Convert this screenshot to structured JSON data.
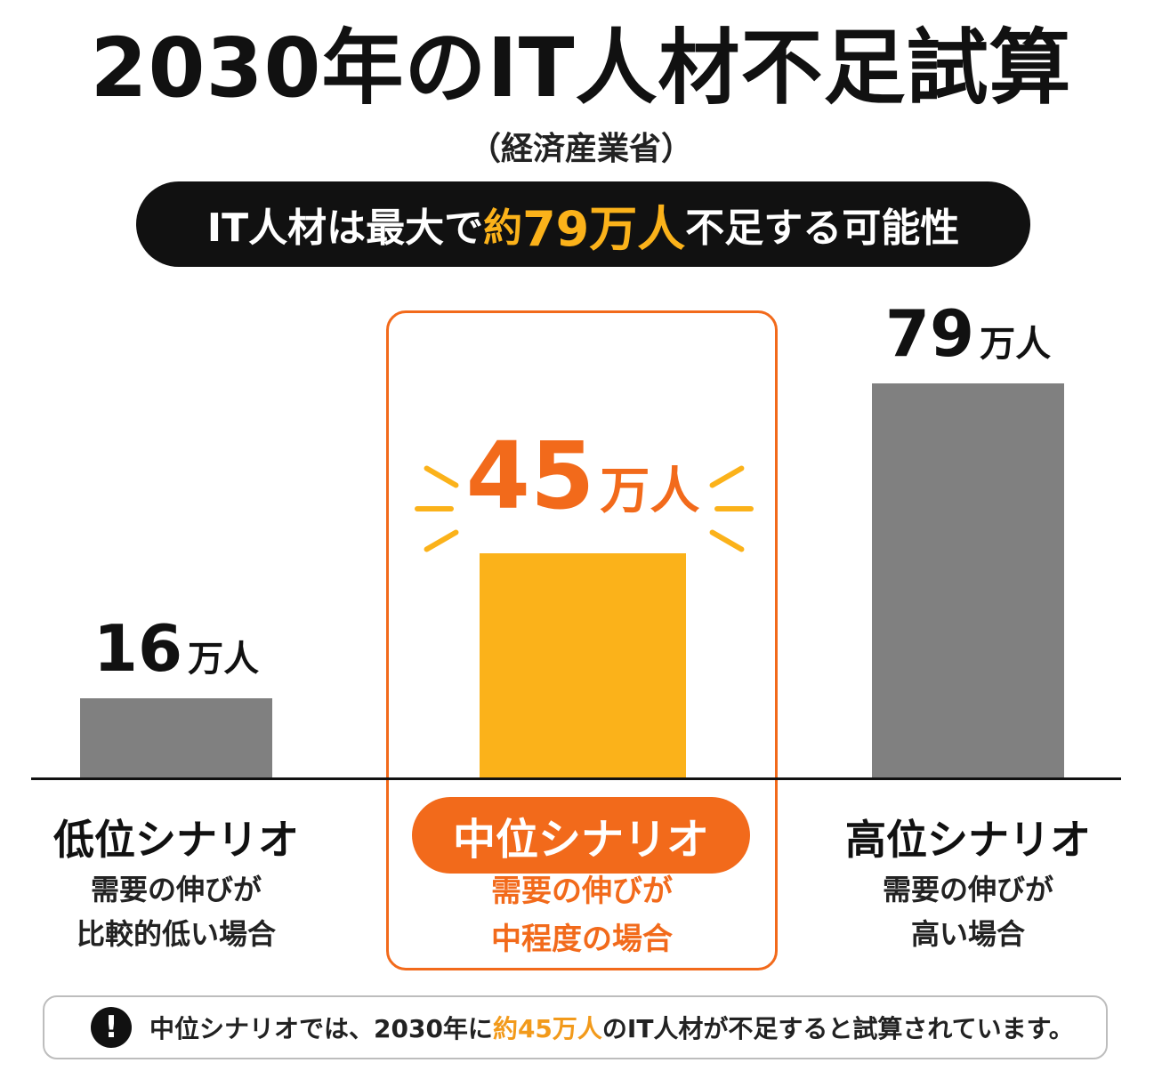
{
  "title": "2030年のIT人材不足試算",
  "source": "（経済産業省）",
  "headline": {
    "pre": "IT人材は最大で",
    "hl_a": "約",
    "hl_b": "79万人",
    "post": "不足する可能性"
  },
  "colors": {
    "accent_orange": "#f26a1b",
    "bar_highlight": "#fbb21a",
    "bar_gray": "#808080"
  },
  "chart_data": {
    "type": "bar",
    "categories": [
      "低位シナリオ",
      "中位シナリオ",
      "高位シナリオ"
    ],
    "values": [
      16,
      45,
      79
    ],
    "value_labels": [
      {
        "num": "16",
        "unit": "万人"
      },
      {
        "num": "45",
        "unit": "万人"
      },
      {
        "num": "79",
        "unit": "万人"
      }
    ],
    "descriptions": [
      [
        "需要の伸びが",
        "比較的低い場合"
      ],
      [
        "需要の伸びが",
        "中程度の場合"
      ],
      [
        "需要の伸びが",
        "高い場合"
      ]
    ],
    "highlighted_index": 1,
    "ylim": [
      0,
      79
    ],
    "grid": false
  },
  "note": {
    "icon": "exclamation-icon",
    "icon_glyph": "!",
    "pre": "中位シナリオでは、2030年に",
    "hl": "約45万人",
    "post": "のIT人材が不足すると試算されています。"
  }
}
